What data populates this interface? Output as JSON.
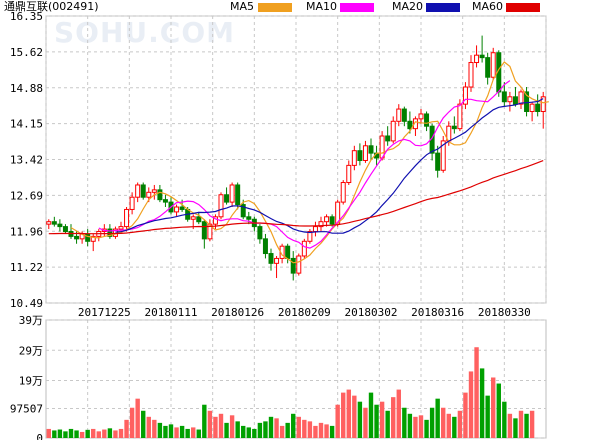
{
  "header": {
    "stock_name": "通鼎互联",
    "stock_code": "(002491)",
    "watermark": "SOHU.COM"
  },
  "legend": [
    {
      "name": "MA5",
      "color": "#f0a020"
    },
    {
      "name": "MA10",
      "color": "#ff00ff"
    },
    {
      "name": "MA20",
      "color": "#1010b0"
    },
    {
      "name": "MA60",
      "color": "#e00000"
    }
  ],
  "chart_data": [
    {
      "type": "candlestick",
      "ylim": [
        10.49,
        16.35
      ],
      "y_ticks": [
        "16.35",
        "15.62",
        "14.88",
        "14.15",
        "13.42",
        "12.69",
        "11.96",
        "11.22",
        "10.49"
      ],
      "x_tick_labels": [
        "20171225",
        "20180111",
        "20180126",
        "20180209",
        "20180302",
        "20180316",
        "20180330"
      ],
      "x_tick_indices": [
        10,
        22,
        34,
        46,
        58,
        70,
        82
      ],
      "up_color": "#ff0000",
      "down_color": "#008000",
      "candles": [
        [
          12.1,
          12.2,
          12.0,
          12.15
        ],
        [
          12.15,
          12.25,
          12.05,
          12.1
        ],
        [
          12.1,
          12.2,
          11.95,
          12.05
        ],
        [
          12.05,
          12.1,
          11.9,
          11.95
        ],
        [
          11.95,
          12.1,
          11.8,
          11.85
        ],
        [
          11.85,
          11.95,
          11.7,
          11.8
        ],
        [
          11.8,
          11.95,
          11.7,
          11.9
        ],
        [
          11.9,
          12.0,
          11.65,
          11.75
        ],
        [
          11.75,
          11.9,
          11.55,
          11.85
        ],
        [
          11.85,
          12.0,
          11.75,
          11.95
        ],
        [
          11.95,
          12.1,
          11.85,
          12.0
        ],
        [
          12.0,
          12.1,
          11.8,
          11.85
        ],
        [
          11.85,
          12.05,
          11.8,
          12.0
        ],
        [
          12.0,
          12.15,
          11.9,
          12.05
        ],
        [
          12.05,
          12.45,
          11.95,
          12.4
        ],
        [
          12.4,
          12.75,
          12.3,
          12.65
        ],
        [
          12.65,
          12.95,
          12.55,
          12.9
        ],
        [
          12.9,
          12.95,
          12.6,
          12.65
        ],
        [
          12.65,
          12.85,
          12.55,
          12.75
        ],
        [
          12.75,
          12.9,
          12.6,
          12.8
        ],
        [
          12.8,
          12.9,
          12.55,
          12.6
        ],
        [
          12.6,
          12.7,
          12.45,
          12.55
        ],
        [
          12.55,
          12.65,
          12.3,
          12.35
        ],
        [
          12.35,
          12.5,
          12.25,
          12.45
        ],
        [
          12.45,
          12.6,
          12.35,
          12.4
        ],
        [
          12.4,
          12.45,
          12.15,
          12.2
        ],
        [
          12.2,
          12.3,
          12.0,
          12.25
        ],
        [
          12.25,
          12.35,
          12.1,
          12.15
        ],
        [
          12.15,
          12.2,
          11.6,
          11.8
        ],
        [
          11.8,
          12.2,
          11.75,
          12.1
        ],
        [
          12.1,
          12.3,
          12.0,
          12.25
        ],
        [
          12.25,
          12.75,
          12.2,
          12.7
        ],
        [
          12.7,
          12.85,
          12.5,
          12.55
        ],
        [
          12.55,
          12.95,
          12.45,
          12.9
        ],
        [
          12.9,
          12.95,
          12.4,
          12.5
        ],
        [
          12.5,
          12.6,
          12.2,
          12.25
        ],
        [
          12.25,
          12.35,
          12.1,
          12.2
        ],
        [
          12.2,
          12.25,
          11.95,
          12.05
        ],
        [
          12.05,
          12.1,
          11.7,
          11.8
        ],
        [
          11.8,
          11.9,
          11.4,
          11.5
        ],
        [
          11.5,
          11.6,
          11.15,
          11.3
        ],
        [
          11.3,
          11.45,
          11.0,
          11.4
        ],
        [
          11.4,
          11.7,
          11.3,
          11.65
        ],
        [
          11.65,
          11.7,
          11.3,
          11.4
        ],
        [
          11.4,
          11.55,
          10.95,
          11.1
        ],
        [
          11.1,
          11.5,
          11.05,
          11.45
        ],
        [
          11.45,
          11.8,
          11.4,
          11.75
        ],
        [
          11.75,
          12.0,
          11.7,
          11.95
        ],
        [
          11.95,
          12.15,
          11.85,
          12.05
        ],
        [
          12.05,
          12.25,
          11.95,
          12.15
        ],
        [
          12.15,
          12.3,
          12.05,
          12.25
        ],
        [
          12.25,
          12.3,
          12.05,
          12.1
        ],
        [
          12.1,
          12.6,
          12.05,
          12.55
        ],
        [
          12.55,
          13.0,
          12.5,
          12.95
        ],
        [
          12.95,
          13.4,
          12.9,
          13.3
        ],
        [
          13.3,
          13.7,
          13.2,
          13.6
        ],
        [
          13.6,
          13.75,
          13.3,
          13.4
        ],
        [
          13.4,
          13.8,
          13.35,
          13.7
        ],
        [
          13.7,
          13.85,
          13.4,
          13.55
        ],
        [
          13.55,
          13.7,
          13.3,
          13.45
        ],
        [
          13.45,
          14.0,
          13.4,
          13.9
        ],
        [
          13.9,
          14.1,
          13.7,
          13.8
        ],
        [
          13.8,
          14.3,
          13.75,
          14.2
        ],
        [
          14.2,
          14.55,
          14.1,
          14.45
        ],
        [
          14.45,
          14.5,
          14.1,
          14.2
        ],
        [
          14.2,
          14.4,
          13.95,
          14.05
        ],
        [
          14.05,
          14.3,
          13.9,
          14.25
        ],
        [
          14.25,
          14.45,
          14.15,
          14.35
        ],
        [
          14.35,
          14.4,
          14.0,
          14.1
        ],
        [
          14.1,
          14.15,
          13.4,
          13.55
        ],
        [
          13.55,
          13.7,
          13.05,
          13.2
        ],
        [
          13.2,
          13.9,
          13.15,
          13.8
        ],
        [
          13.8,
          14.2,
          13.7,
          14.1
        ],
        [
          14.1,
          14.3,
          13.95,
          14.05
        ],
        [
          14.05,
          14.65,
          14.0,
          14.55
        ],
        [
          14.55,
          15.0,
          14.45,
          14.9
        ],
        [
          14.9,
          15.55,
          14.8,
          15.4
        ],
        [
          15.4,
          15.75,
          15.3,
          15.55
        ],
        [
          15.55,
          15.95,
          15.4,
          15.5
        ],
        [
          15.5,
          15.6,
          14.95,
          15.1
        ],
        [
          15.1,
          15.7,
          15.05,
          15.6
        ],
        [
          15.6,
          15.65,
          14.7,
          14.8
        ],
        [
          14.8,
          15.0,
          14.5,
          14.6
        ],
        [
          14.6,
          14.8,
          14.4,
          14.7
        ],
        [
          14.7,
          14.9,
          14.5,
          14.55
        ],
        [
          14.55,
          14.85,
          14.45,
          14.8
        ],
        [
          14.8,
          14.9,
          14.3,
          14.4
        ],
        [
          14.4,
          14.6,
          14.2,
          14.55
        ],
        [
          14.55,
          14.75,
          14.3,
          14.4
        ],
        [
          14.4,
          14.8,
          14.05,
          14.7
        ]
      ],
      "ma5_start": 4,
      "ma5": [
        12.03,
        11.96,
        11.89,
        11.85,
        11.83,
        11.82,
        11.85,
        11.87,
        11.9,
        11.93,
        11.99,
        12.07,
        12.21,
        12.41,
        12.6,
        12.7,
        12.75,
        12.72,
        12.66,
        12.58,
        12.5,
        12.4,
        12.33,
        12.28,
        12.19,
        12.08,
        11.98,
        12.01,
        12.1,
        12.28,
        12.43,
        12.55,
        12.58,
        12.52,
        12.36,
        12.16,
        11.95,
        11.68,
        11.47,
        11.39,
        11.31,
        11.33,
        11.39,
        11.47,
        11.6,
        11.71,
        11.85,
        12.0,
        12.12,
        12.22,
        12.41,
        12.68,
        12.96,
        13.2,
        13.41,
        13.55,
        13.55,
        13.61,
        13.64,
        13.72,
        13.88,
        14.0,
        14.19,
        14.17,
        14.16,
        14.19,
        14.2,
        14.0,
        13.78,
        13.72,
        13.72,
        13.76,
        13.96,
        14.18,
        14.48,
        14.72,
        15.05,
        15.26,
        15.41,
        15.32,
        15.02,
        14.9,
        14.73,
        14.66,
        14.61,
        14.58,
        14.6
      ],
      "ma10_start": 9,
      "ma10": [
        12.02,
        11.97,
        11.96,
        11.97,
        11.98,
        11.98,
        12.0,
        12.03,
        12.09,
        12.16,
        12.19,
        12.26,
        12.35,
        12.45,
        12.54,
        12.55,
        12.57,
        12.56,
        12.5,
        12.4,
        12.27,
        12.21,
        12.17,
        12.2,
        12.21,
        12.21,
        12.17,
        12.16,
        12.12,
        12.12,
        12.12,
        12.1,
        12.05,
        11.94,
        11.83,
        11.77,
        11.73,
        11.64,
        11.61,
        11.67,
        11.75,
        11.88,
        12.02,
        12.14,
        12.27,
        12.43,
        12.59,
        12.75,
        12.94,
        13.12,
        13.29,
        13.45,
        13.63,
        13.73,
        13.8,
        13.83,
        13.8,
        13.71,
        13.7,
        13.74,
        13.86,
        14.08,
        14.27,
        14.39,
        14.49,
        14.52,
        14.65,
        14.65,
        14.62,
        14.61,
        14.6,
        14.7,
        14.81,
        14.95,
        15.03
      ]
    },
    {
      "type": "bar",
      "title": "volume",
      "ylim": [
        0,
        390000
      ],
      "y_ticks": [
        "39万",
        "29万",
        "19万",
        "97507",
        "0"
      ],
      "y_tick_values": [
        390000,
        290000,
        190000,
        97507,
        0
      ],
      "values": [
        30000,
        25000,
        28000,
        22000,
        30000,
        25000,
        20000,
        27000,
        30000,
        22000,
        28000,
        32000,
        25000,
        30000,
        60000,
        100000,
        130000,
        90000,
        70000,
        60000,
        50000,
        40000,
        45000,
        35000,
        40000,
        30000,
        35000,
        28000,
        110000,
        90000,
        70000,
        80000,
        50000,
        75000,
        55000,
        40000,
        35000,
        30000,
        50000,
        55000,
        70000,
        65000,
        40000,
        50000,
        80000,
        70000,
        60000,
        55000,
        40000,
        50000,
        45000,
        40000,
        110000,
        150000,
        160000,
        140000,
        120000,
        100000,
        150000,
        110000,
        120000,
        90000,
        135000,
        160000,
        100000,
        80000,
        70000,
        75000,
        60000,
        100000,
        130000,
        100000,
        80000,
        70000,
        90000,
        150000,
        220000,
        300000,
        230000,
        140000,
        200000,
        180000,
        120000,
        80000,
        65000,
        90000,
        80000,
        90000
      ]
    }
  ]
}
